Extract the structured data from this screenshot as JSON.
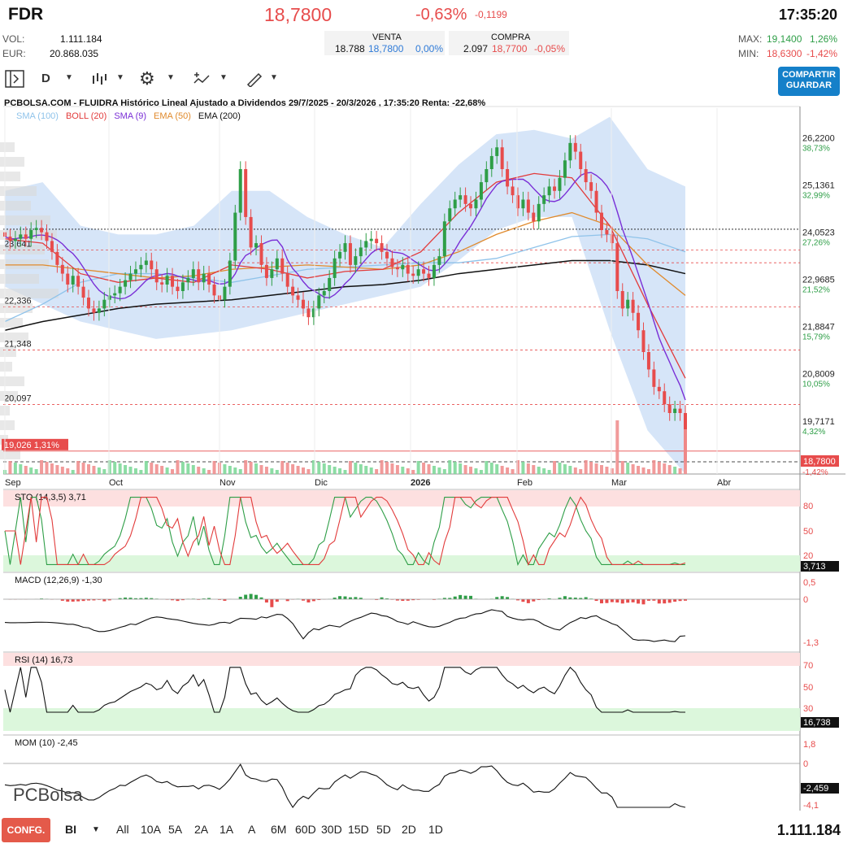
{
  "header": {
    "symbol": "FDR",
    "price": "18,7800",
    "change_pct": "-0,63%",
    "change_abs": "-0,1199",
    "time": "17:35:20",
    "vol_label": "VOL:",
    "vol_value": "1.111.184",
    "eur_label": "EUR:",
    "eur_value": "20.868.035",
    "venta_label": "VENTA",
    "venta_qty": "18.788",
    "venta_price": "18,7800",
    "venta_pct": "0,00%",
    "compra_label": "COMPRA",
    "compra_qty": "2.097",
    "compra_price": "18,7700",
    "compra_pct": "-0,05%",
    "max_label": "MAX:",
    "max_value": "19,1400",
    "max_pct": "1,26%",
    "min_label": "MIN:",
    "min_value": "18,6300",
    "min_pct": "-1,42%"
  },
  "toolbar": {
    "period": "D",
    "share_line1": "COMPARTIR",
    "share_line2": "GUARDAR"
  },
  "chart_title": "PCBOLSA.COM - FLUIDRA Histórico Lineal Ajustado a Dividendos 29/7/2025 - 20/3/2026 , 17:35:20 Renta: -22,68%",
  "legend": [
    {
      "label": "SMA (100)",
      "color": "#8fc3ea"
    },
    {
      "label": "BOLL (20)",
      "color": "#e23b3b"
    },
    {
      "label": "SMA (9)",
      "color": "#7a2fd6"
    },
    {
      "label": "EMA (50)",
      "color": "#e08a2c"
    },
    {
      "label": "EMA (200)",
      "color": "#111111"
    }
  ],
  "colors": {
    "up": "#2e9e47",
    "down": "#e74c4c",
    "boll_fill": "#cfe1f7",
    "accent": "#1580c9"
  },
  "chart_data": {
    "type": "candlestick",
    "x_labels": [
      "Sep",
      "Oct",
      "Nov",
      "Dic",
      "2026",
      "Feb",
      "Mar",
      "Abr"
    ],
    "y_ticks": [
      {
        "value": "26,2200",
        "pct": "38,73%"
      },
      {
        "value": "25,1361",
        "pct": "32,99%"
      },
      {
        "value": "24,0523",
        "pct": "27,26%"
      },
      {
        "value": "22,9685",
        "pct": "21,52%"
      },
      {
        "value": "21,8847",
        "pct": "15,79%"
      },
      {
        "value": "20,8009",
        "pct": "10,05%"
      },
      {
        "value": "19,7171",
        "pct": "4,32%"
      }
    ],
    "last_price": "18,7800",
    "last_pct": "-1,42%",
    "ylim": [
      18.5,
      26.9
    ],
    "ref_lines": [
      {
        "value": 23.641,
        "label": "23,641"
      },
      {
        "value": 22.336,
        "label": "22,336"
      },
      {
        "value": 21.348,
        "label": "21,348"
      },
      {
        "value": 20.097,
        "label": "20,097"
      }
    ],
    "ref_red_extra": [
      23.35
    ],
    "black_dotted": 24.12,
    "black_dotted_low": 18.78,
    "marker": {
      "value": 19.026,
      "label": "19,026",
      "pct": "1,31%"
    },
    "close": [
      23.95,
      23.85,
      23.9,
      24.0,
      23.9,
      24.1,
      24.15,
      24.05,
      23.85,
      23.6,
      23.3,
      23.1,
      22.85,
      23.05,
      22.8,
      22.55,
      22.3,
      22.2,
      22.3,
      22.5,
      22.6,
      22.65,
      22.8,
      22.95,
      23.1,
      23.2,
      23.3,
      23.4,
      23.2,
      22.9,
      22.85,
      23.05,
      22.8,
      22.7,
      22.9,
      23.0,
      23.2,
      22.9,
      23.1,
      22.85,
      22.6,
      22.5,
      22.8,
      23.4,
      24.5,
      25.5,
      24.4,
      23.7,
      23.8,
      23.3,
      23.0,
      23.2,
      23.45,
      23.1,
      22.8,
      22.6,
      22.5,
      22.3,
      22.1,
      22.3,
      22.6,
      22.7,
      23.0,
      23.45,
      23.6,
      23.8,
      23.3,
      23.5,
      23.7,
      23.85,
      23.9,
      23.8,
      23.6,
      23.45,
      23.25,
      23.2,
      23.3,
      23.1,
      23.05,
      23.2,
      23.1,
      23.0,
      23.3,
      23.5,
      24.3,
      24.6,
      24.8,
      24.9,
      24.7,
      24.6,
      24.8,
      25.2,
      25.5,
      25.8,
      26.0,
      25.5,
      25.1,
      24.9,
      24.6,
      24.8,
      24.5,
      24.3,
      24.7,
      24.9,
      25.1,
      25.0,
      25.3,
      25.7,
      26.1,
      25.9,
      25.5,
      25.2,
      25.0,
      24.5,
      24.1,
      24.0,
      23.8,
      22.7,
      22.3,
      22.5,
      22.2,
      21.8,
      21.3,
      20.9,
      20.5,
      20.4,
      20.1,
      19.9,
      20.0,
      19.9,
      18.78
    ],
    "sma100": [
      22.0,
      22.4,
      22.9,
      23.1,
      23.1,
      23.0,
      22.9,
      23.05,
      23.2,
      23.25,
      23.3,
      23.35,
      23.35,
      23.45,
      23.7,
      23.95,
      24.0,
      23.9,
      23.6
    ],
    "ema200": [
      21.8,
      22.0,
      22.15,
      22.3,
      22.4,
      22.45,
      22.5,
      22.6,
      22.7,
      22.8,
      22.85,
      22.95,
      23.1,
      23.2,
      23.3,
      23.4,
      23.4,
      23.3,
      23.1
    ],
    "ema50": [
      23.3,
      23.3,
      23.2,
      23.1,
      23.0,
      23.05,
      23.2,
      23.25,
      23.3,
      23.25,
      23.2,
      23.3,
      23.6,
      24.0,
      24.3,
      24.5,
      24.2,
      23.3,
      22.6
    ],
    "boll_mid": [
      23.9,
      23.8,
      23.1,
      22.9,
      23.0,
      22.9,
      23.3,
      23.2,
      23.0,
      23.15,
      23.2,
      23.6,
      24.5,
      25.2,
      25.4,
      25.3,
      24.2,
      22.4,
      20.7
    ],
    "boll_up": [
      25.0,
      25.2,
      24.2,
      24.0,
      24.0,
      24.2,
      25.0,
      25.0,
      24.4,
      24.0,
      23.7,
      24.7,
      25.6,
      26.3,
      26.4,
      26.2,
      26.7,
      25.5,
      25.1
    ],
    "boll_lo": [
      22.8,
      22.4,
      22.0,
      21.8,
      21.6,
      21.7,
      21.8,
      22.0,
      22.2,
      22.4,
      22.6,
      22.8,
      23.4,
      24.1,
      24.4,
      24.4,
      21.8,
      19.5,
      18.5
    ],
    "volume_note": "volume bars along bottom",
    "indicators": [
      {
        "name": "STO (14,3,5)",
        "value": "3,71",
        "ticks": [
          "80",
          "50",
          "20"
        ],
        "last": "3,713"
      },
      {
        "name": "MACD (12,26,9)",
        "value": "-1,30",
        "ticks": [
          "0,5",
          "0",
          "-1,3"
        ],
        "last": ""
      },
      {
        "name": "RSI (14)",
        "value": "16,73",
        "ticks": [
          "70",
          "50",
          "30"
        ],
        "last": "16,738"
      },
      {
        "name": "MOM (10)",
        "value": "-2,45",
        "ticks": [
          "1,8",
          "0",
          "-4,1"
        ],
        "last": "-2,459"
      }
    ]
  },
  "footer": {
    "confg": "CONFG.",
    "bi": "BI",
    "timeframes": [
      "All",
      "10A",
      "5A",
      "2A",
      "1A",
      "A",
      "6M",
      "60D",
      "30D",
      "15D",
      "5D",
      "2D",
      "1D"
    ],
    "volume_total": "1.111.184",
    "brand": "PCBolsa"
  }
}
